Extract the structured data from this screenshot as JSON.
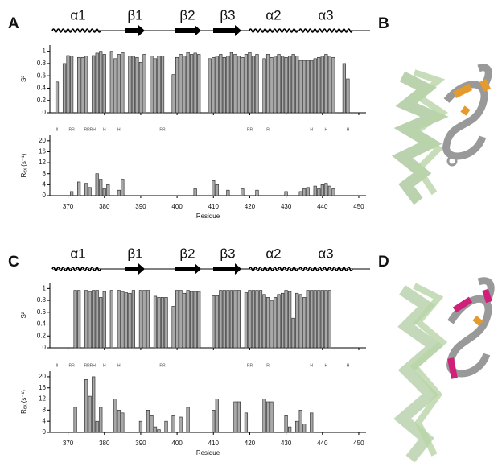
{
  "figure": {
    "panel_labels": [
      "A",
      "B",
      "C",
      "D"
    ],
    "secondary_structure": [
      "α1",
      "β1",
      "β2",
      "β3",
      "α2",
      "α3"
    ]
  },
  "chart_data": [
    {
      "type": "bar",
      "y_label": "S²",
      "color": "#a8a8a8",
      "x": [
        367,
        369,
        370,
        371,
        373,
        374,
        375,
        377,
        378,
        379,
        380,
        382,
        383,
        384,
        385,
        387,
        388,
        389,
        390,
        391,
        393,
        394,
        395,
        396,
        399,
        400,
        401,
        402,
        403,
        404,
        405,
        406,
        409,
        410,
        411,
        412,
        413,
        414,
        415,
        416,
        417,
        418,
        419,
        420,
        421,
        422,
        424,
        425,
        426,
        427,
        428,
        429,
        430,
        431,
        432,
        433,
        434,
        435,
        436,
        437,
        438,
        439,
        440,
        441,
        442,
        443,
        446,
        447
      ],
      "values": [
        0.5,
        0.8,
        0.93,
        0.92,
        0.9,
        0.9,
        0.92,
        0.93,
        0.97,
        1.0,
        0.95,
        1.0,
        0.88,
        0.95,
        0.98,
        0.92,
        0.92,
        0.9,
        0.82,
        0.95,
        0.92,
        0.88,
        0.92,
        0.92,
        0.62,
        0.9,
        0.95,
        0.92,
        0.98,
        0.95,
        0.97,
        0.95,
        0.88,
        0.9,
        0.92,
        0.95,
        0.9,
        0.92,
        0.98,
        0.95,
        0.92,
        0.9,
        0.95,
        0.98,
        0.92,
        0.95,
        0.88,
        0.95,
        0.9,
        0.92,
        0.95,
        0.92,
        0.9,
        0.92,
        0.95,
        0.92,
        0.85,
        0.85,
        0.85,
        0.85,
        0.88,
        0.9,
        0.92,
        0.95,
        0.92,
        0.9,
        0.8,
        0.55
      ],
      "xlim": [
        365,
        452
      ],
      "ylim": [
        0,
        1.1
      ],
      "xticks": [
        370,
        380,
        390,
        400,
        410,
        420,
        430,
        440,
        450
      ],
      "yticks": [
        0,
        0.2,
        0.4,
        0.6,
        0.8,
        1
      ]
    },
    {
      "type": "bar",
      "y_label": "Rₑₓ (s⁻¹)",
      "x_label": "Residue",
      "color": "#a8a8a8",
      "x": [
        371,
        373,
        375,
        376,
        378,
        379,
        380,
        381,
        384,
        385,
        405,
        410,
        411,
        414,
        418,
        422,
        430,
        434,
        435,
        436,
        438,
        439,
        440,
        441,
        442,
        443
      ],
      "values": [
        1.5,
        5,
        4.5,
        3,
        8,
        6,
        2.5,
        4,
        2,
        6,
        2.5,
        5.5,
        4,
        2,
        2.5,
        2,
        1.5,
        1.5,
        2.5,
        3,
        3.5,
        2.5,
        4,
        4.5,
        3.5,
        2.5
      ],
      "xlim": [
        365,
        452
      ],
      "ylim": [
        0,
        22
      ],
      "xticks": [
        370,
        380,
        390,
        400,
        410,
        420,
        430,
        440,
        450
      ],
      "yticks": [
        0,
        4,
        8,
        12,
        16,
        20
      ],
      "annotations": [
        {
          "x": 367,
          "label": "II"
        },
        {
          "x": 371,
          "label": "RR"
        },
        {
          "x": 376,
          "label": "RRRH"
        },
        {
          "x": 380,
          "label": "H"
        },
        {
          "x": 384,
          "label": "H"
        },
        {
          "x": 396,
          "label": "RR"
        },
        {
          "x": 420,
          "label": "RR"
        },
        {
          "x": 425,
          "label": "R"
        },
        {
          "x": 437,
          "label": "H"
        },
        {
          "x": 441,
          "label": "H"
        },
        {
          "x": 447,
          "label": "H"
        }
      ]
    },
    {
      "type": "bar",
      "y_label": "S²",
      "color": "#a8a8a8",
      "x": [
        372,
        373,
        375,
        376,
        377,
        378,
        379,
        380,
        382,
        384,
        385,
        386,
        387,
        388,
        390,
        391,
        392,
        394,
        395,
        396,
        397,
        399,
        400,
        401,
        402,
        403,
        404,
        405,
        406,
        410,
        411,
        412,
        413,
        414,
        415,
        416,
        417,
        419,
        420,
        421,
        422,
        423,
        424,
        425,
        426,
        427,
        428,
        429,
        430,
        431,
        432,
        433,
        434,
        435,
        436,
        437,
        438,
        439,
        440,
        441,
        442
      ],
      "values": [
        0.97,
        0.97,
        0.97,
        0.95,
        0.97,
        0.97,
        0.85,
        0.95,
        0.97,
        0.97,
        0.95,
        0.93,
        0.92,
        0.97,
        0.97,
        0.97,
        0.97,
        0.87,
        0.85,
        0.85,
        0.85,
        0.7,
        0.97,
        0.97,
        0.92,
        0.97,
        0.95,
        0.95,
        0.95,
        0.88,
        0.88,
        0.97,
        0.97,
        0.97,
        0.97,
        0.97,
        0.97,
        0.93,
        0.97,
        0.97,
        0.97,
        0.97,
        0.9,
        0.85,
        0.8,
        0.85,
        0.9,
        0.92,
        0.97,
        0.95,
        0.5,
        0.92,
        0.9,
        0.85,
        0.97,
        0.97,
        0.97,
        0.97,
        0.97,
        0.97,
        0.97
      ],
      "xlim": [
        365,
        452
      ],
      "ylim": [
        0,
        1.1
      ],
      "xticks": [
        370,
        380,
        390,
        400,
        410,
        420,
        430,
        440,
        450
      ],
      "yticks": [
        0,
        0.2,
        0.4,
        0.6,
        0.8,
        1
      ]
    },
    {
      "type": "bar",
      "y_label": "Rₑₓ (s⁻¹)",
      "x_label": "Residue",
      "color": "#a8a8a8",
      "x": [
        372,
        375,
        376,
        377,
        378,
        379,
        383,
        384,
        385,
        390,
        392,
        393,
        394,
        395,
        397,
        399,
        401,
        403,
        410,
        411,
        416,
        417,
        419,
        424,
        425,
        426,
        430,
        431,
        433,
        434,
        435,
        437
      ],
      "values": [
        9,
        19,
        13,
        20,
        4,
        9,
        12,
        8,
        7,
        4,
        8,
        6,
        2,
        1,
        4,
        6,
        5.5,
        9,
        8,
        12,
        11,
        11,
        7,
        12,
        11,
        11,
        6,
        2,
        4,
        8,
        3,
        7
      ],
      "xlim": [
        365,
        452
      ],
      "ylim": [
        0,
        22
      ],
      "xticks": [
        370,
        380,
        390,
        400,
        410,
        420,
        430,
        440,
        450
      ],
      "yticks": [
        0,
        4,
        8,
        12,
        16,
        20
      ],
      "annotations": [
        {
          "x": 367,
          "label": "II"
        },
        {
          "x": 371,
          "label": "RR"
        },
        {
          "x": 376,
          "label": "RRRH"
        },
        {
          "x": 380,
          "label": "H"
        },
        {
          "x": 384,
          "label": "H"
        },
        {
          "x": 396,
          "label": "RR"
        },
        {
          "x": 420,
          "label": "RR"
        },
        {
          "x": 425,
          "label": "R"
        },
        {
          "x": 437,
          "label": "H"
        },
        {
          "x": 441,
          "label": "H"
        },
        {
          "x": 447,
          "label": "H"
        }
      ]
    }
  ]
}
